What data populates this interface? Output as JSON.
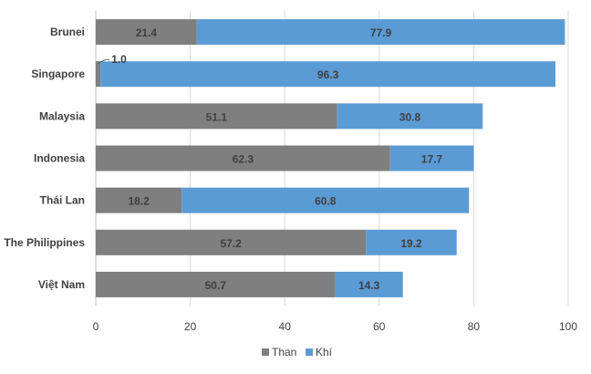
{
  "chart_data": {
    "type": "bar",
    "orientation": "horizontal",
    "stacked": true,
    "categories": [
      "Brunei",
      "Singapore",
      "Malaysia",
      "Indonesia",
      "Thái Lan",
      "The Philippines",
      "Việt Nam"
    ],
    "series": [
      {
        "name": "Than",
        "color": "#7f7f7f",
        "values": [
          21.4,
          1.0,
          51.1,
          62.3,
          18.2,
          57.2,
          50.7
        ]
      },
      {
        "name": "Khí",
        "color": "#5b9bd5",
        "values": [
          77.9,
          96.3,
          30.8,
          17.7,
          60.8,
          19.2,
          14.3
        ]
      }
    ],
    "data_labels": {
      "Than": [
        "21.4",
        "1.0",
        "51.1",
        "62.3",
        "18.2",
        "57.2",
        "50.7"
      ],
      "Khí": [
        "77.9",
        "96.3",
        "30.8",
        "17.7",
        "60.8",
        "19.2",
        "14.3"
      ]
    },
    "xlim": [
      0,
      100
    ],
    "xticks": [
      "0",
      "20",
      "40",
      "60",
      "80",
      "100"
    ],
    "title": "",
    "xlabel": "",
    "ylabel": "",
    "grid": "vertical",
    "legend_position": "bottom"
  }
}
